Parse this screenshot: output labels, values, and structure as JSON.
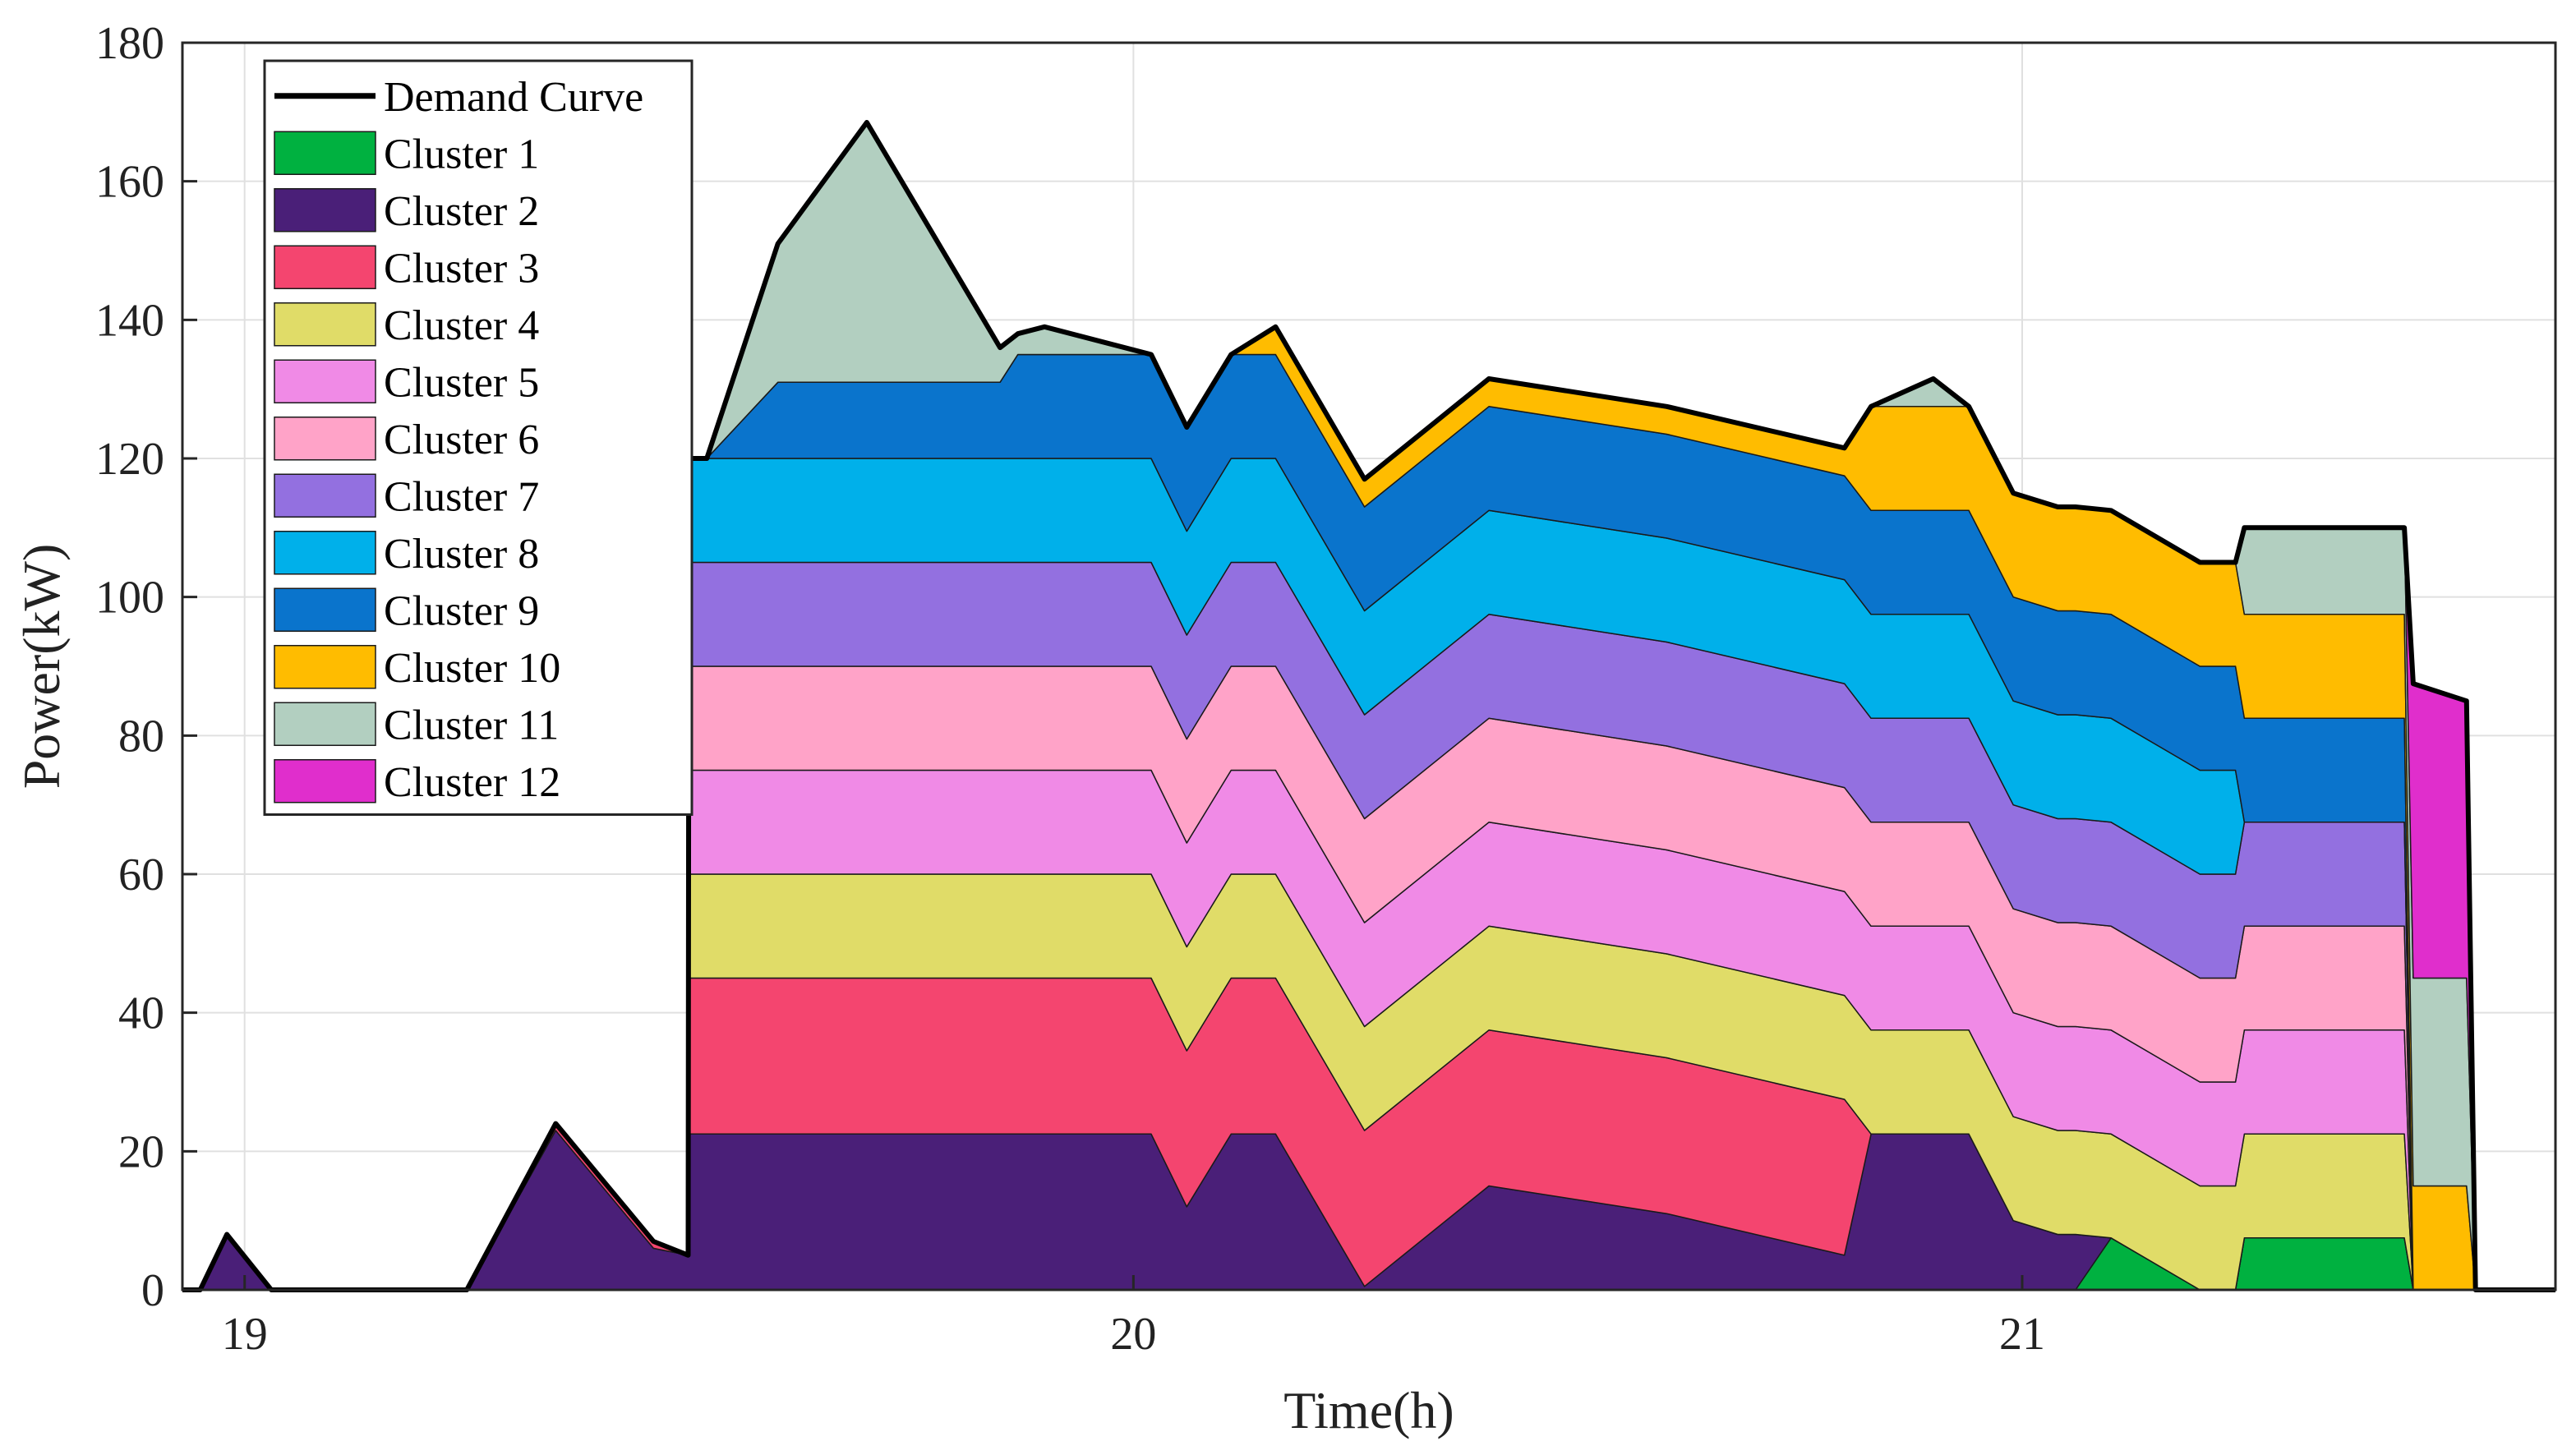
{
  "chart_data": {
    "type": "area",
    "title": "",
    "xlabel": "Time(h)",
    "ylabel": "Power(kW)",
    "xlim": [
      18.93,
      21.6
    ],
    "ylim": [
      0,
      180
    ],
    "x_ticks": [
      19,
      20,
      21
    ],
    "y_ticks": [
      0,
      20,
      40,
      60,
      80,
      100,
      120,
      140,
      160,
      180
    ],
    "grid": true,
    "legend_position": "top-left",
    "x": [
      18.93,
      18.95,
      18.98,
      19.03,
      19.25,
      19.35,
      19.46,
      19.499,
      19.5,
      19.52,
      19.6,
      19.7,
      19.85,
      19.87,
      19.9,
      20.02,
      20.06,
      20.11,
      20.16,
      20.26,
      20.4,
      20.6,
      20.8,
      20.83,
      20.9,
      20.94,
      20.99,
      21.04,
      21.06,
      21.1,
      21.2,
      21.24,
      21.25,
      21.4,
      21.43,
      21.44,
      21.5,
      21.51,
      21.6
    ],
    "series": [
      {
        "name": "Cluster 1",
        "color": "#00b140",
        "values": [
          0,
          0,
          0,
          0,
          0,
          0,
          0,
          0,
          0,
          0,
          0,
          0,
          0,
          0,
          0,
          0,
          0,
          0,
          0,
          0,
          0,
          0,
          0,
          0,
          0,
          0,
          0,
          0,
          0,
          7.5,
          0,
          0,
          7.5,
          7.5,
          7.5,
          0,
          0,
          0,
          0
        ]
      },
      {
        "name": "Cluster 2",
        "color": "#4a1f78",
        "values": [
          0,
          0,
          8,
          0,
          0,
          23,
          6,
          5,
          22.5,
          22.5,
          22.5,
          22.5,
          22.5,
          22.5,
          22.5,
          22.5,
          12,
          22.5,
          22.5,
          0.5,
          15,
          11,
          5,
          22.5,
          22.5,
          22.5,
          10,
          8,
          8,
          0,
          0,
          0,
          0,
          0,
          0,
          0,
          0,
          0,
          0
        ]
      },
      {
        "name": "Cluster 3",
        "color": "#f4456f",
        "values": [
          0,
          0,
          0,
          0,
          0,
          1,
          1,
          0,
          22.5,
          22.5,
          22.5,
          22.5,
          22.5,
          22.5,
          22.5,
          22.5,
          22.5,
          22.5,
          22.5,
          22.5,
          22.5,
          22.5,
          22.5,
          0,
          0,
          0,
          0,
          0,
          0,
          0,
          0,
          0,
          0,
          0,
          0,
          0,
          0,
          0,
          0
        ]
      },
      {
        "name": "Cluster 4",
        "color": "#e0dc68",
        "values": [
          0,
          0,
          0,
          0,
          0,
          0,
          0,
          0,
          15,
          15,
          15,
          15,
          15,
          15,
          15,
          15,
          15,
          15,
          15,
          15,
          15,
          15,
          15,
          15,
          15,
          15,
          15,
          15,
          15,
          15,
          15,
          15,
          15,
          15,
          15,
          0,
          0,
          0,
          0
        ]
      },
      {
        "name": "Cluster 5",
        "color": "#f08ae6",
        "values": [
          0,
          0,
          0,
          0,
          0,
          0,
          0,
          0,
          15,
          15,
          15,
          15,
          15,
          15,
          15,
          15,
          15,
          15,
          15,
          15,
          15,
          15,
          15,
          15,
          15,
          15,
          15,
          15,
          15,
          15,
          15,
          15,
          15,
          15,
          15,
          0,
          0,
          0,
          0
        ]
      },
      {
        "name": "Cluster 6",
        "color": "#ffa3c8",
        "values": [
          0,
          0,
          0,
          0,
          0,
          0,
          0,
          0,
          15,
          15,
          15,
          15,
          15,
          15,
          15,
          15,
          15,
          15,
          15,
          15,
          15,
          15,
          15,
          15,
          15,
          15,
          15,
          15,
          15,
          15,
          15,
          15,
          15,
          15,
          15,
          0,
          0,
          0,
          0
        ]
      },
      {
        "name": "Cluster 7",
        "color": "#9370e0",
        "values": [
          0,
          0,
          0,
          0,
          0,
          0,
          0,
          0,
          15,
          15,
          15,
          15,
          15,
          15,
          15,
          15,
          15,
          15,
          15,
          15,
          15,
          15,
          15,
          15,
          15,
          15,
          15,
          15,
          15,
          15,
          15,
          15,
          15,
          15,
          15,
          0,
          0,
          0,
          0
        ]
      },
      {
        "name": "Cluster 8",
        "color": "#00b0ea",
        "values": [
          0,
          0,
          0,
          0,
          0,
          0,
          0,
          0,
          15,
          15,
          15,
          15,
          15,
          15,
          15,
          15,
          15,
          15,
          15,
          15,
          15,
          15,
          15,
          15,
          15,
          15,
          15,
          15,
          15,
          15,
          15,
          15,
          0,
          0,
          0,
          0,
          0,
          0,
          0
        ]
      },
      {
        "name": "Cluster 9",
        "color": "#0a74cc",
        "values": [
          0,
          0,
          0,
          0,
          0,
          0,
          0,
          0,
          0,
          0,
          11,
          11,
          11,
          15,
          15,
          15,
          15,
          15,
          15,
          15,
          15,
          15,
          15,
          15,
          15,
          15,
          15,
          15,
          15,
          15,
          15,
          15,
          15,
          15,
          15,
          0,
          0,
          0,
          0
        ]
      },
      {
        "name": "Cluster 10",
        "color": "#ffbc00",
        "values": [
          0,
          0,
          0,
          0,
          0,
          0,
          0,
          0,
          0,
          0,
          0,
          0,
          0,
          0,
          0,
          0,
          0,
          0,
          4,
          4,
          4,
          4,
          4,
          15,
          15,
          15,
          15,
          15,
          15,
          15,
          15,
          15,
          15,
          15,
          15,
          15,
          15,
          0,
          0
        ]
      },
      {
        "name": "Cluster 11",
        "color": "#b2cfc0",
        "values": [
          0,
          0,
          0,
          0,
          0,
          0,
          0,
          0,
          0,
          0,
          20,
          37.5,
          5,
          3,
          4,
          0,
          0,
          0,
          0,
          0,
          0,
          0,
          0,
          0,
          4,
          0,
          0,
          0,
          0,
          0,
          0,
          0,
          12.5,
          12.5,
          12.5,
          30,
          30,
          0,
          0
        ]
      },
      {
        "name": "Cluster 12",
        "color": "#e02ecc",
        "values": [
          0,
          0,
          0,
          0,
          0,
          0,
          0,
          0,
          0,
          0,
          0,
          0,
          0,
          0,
          0,
          0,
          0,
          0,
          0,
          0,
          0,
          0,
          0,
          0,
          0,
          0,
          0,
          0,
          0,
          0,
          0,
          0,
          0,
          0,
          0,
          42.5,
          40,
          0,
          0
        ]
      }
    ],
    "demand_curve": {
      "name": "Demand Curve",
      "color": "#000000"
    }
  }
}
